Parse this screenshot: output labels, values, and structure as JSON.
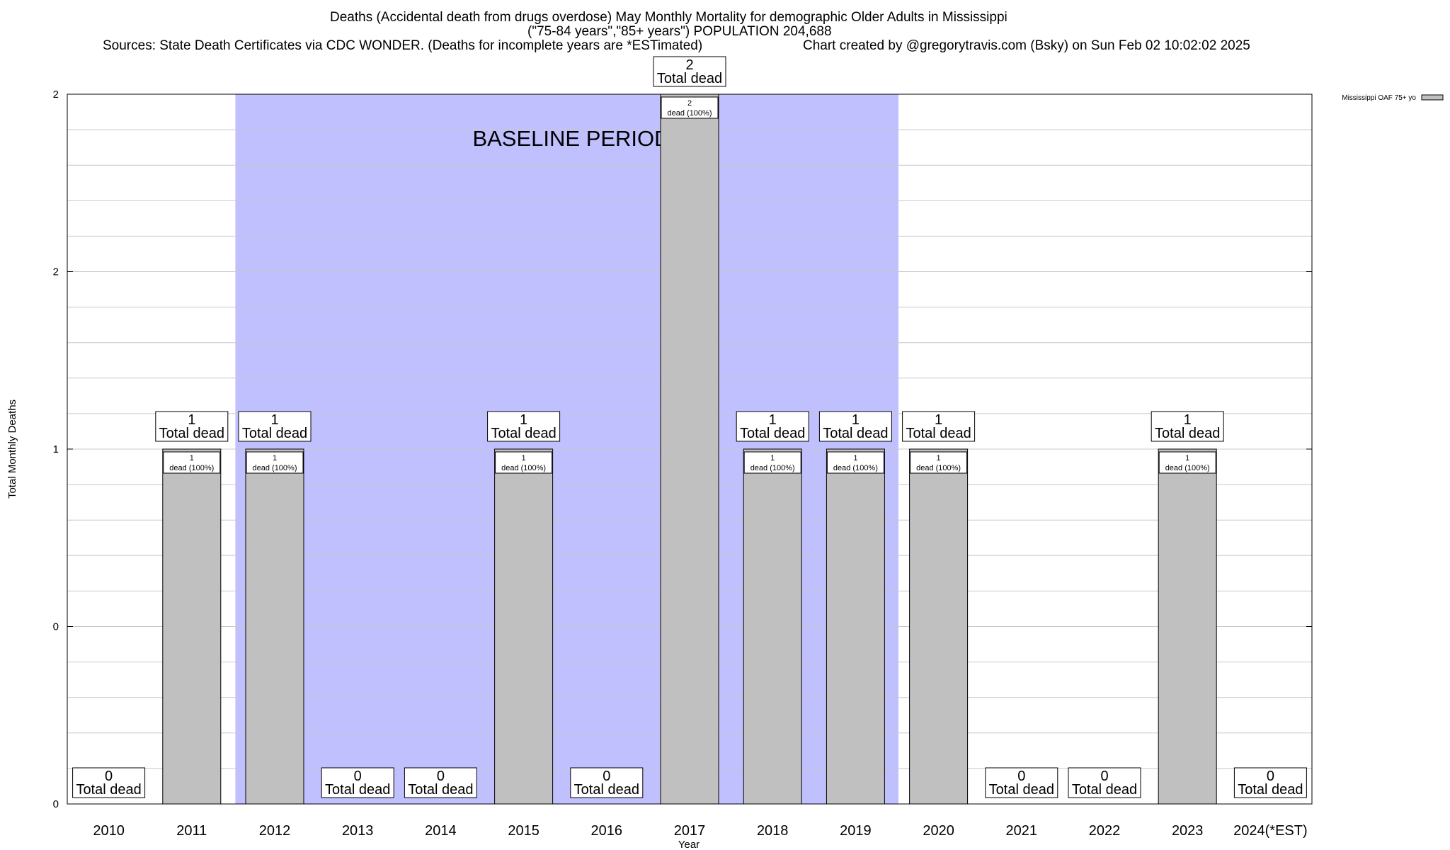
{
  "title_lines": [
    "Deaths (Accidental death from drugs overdose) May Monthly Mortality for demographic Older Adults in Mississippi",
    "(\"75-84 years\",\"85+ years\") POPULATION 204,688"
  ],
  "source_line": "Sources: State Death Certificates via CDC WONDER. (Deaths for incomplete years are *ESTimated)",
  "credit_line": "Chart created by @gregorytravis.com (Bsky) on Sun Feb 02 10:02:02 2025",
  "chart_data": {
    "type": "bar",
    "title": "Deaths (Accidental death from drugs overdose) May Monthly Mortality for demographic Older Adults in Mississippi",
    "xlabel": "Year",
    "ylabel": "Total Monthly Deaths",
    "categories": [
      "2010",
      "2011",
      "2012",
      "2013",
      "2014",
      "2015",
      "2016",
      "2017",
      "2018",
      "2019",
      "2020",
      "2021",
      "2022",
      "2023",
      "2024(*EST)"
    ],
    "series": [
      {
        "name": "Mississippi OAF 75+ yo",
        "values": [
          0,
          1,
          1,
          0,
          0,
          1,
          0,
          2,
          1,
          1,
          1,
          0,
          0,
          1,
          0
        ]
      }
    ],
    "ylim": [
      0,
      2
    ],
    "y_tick_labels": [
      "0",
      "0",
      "1",
      "2",
      "2"
    ],
    "total_label_suffix": "Total dead",
    "bar_label_suffix": "dead (100%)",
    "baseline": {
      "label": "BASELINE PERIOD",
      "start": "2012",
      "end": "2019",
      "color": "#c0c0ff"
    },
    "bar_color": "#c0c0c0",
    "grid": true,
    "legend_position": "outside-top-right"
  }
}
